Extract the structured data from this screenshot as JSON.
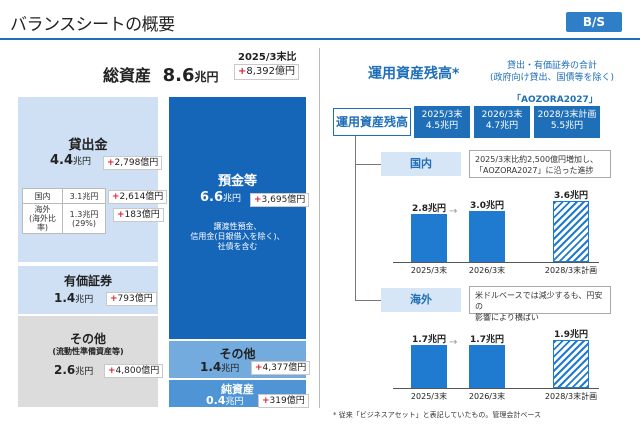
{
  "header": {
    "title": "バランスシートの概要",
    "badge": "B/S"
  },
  "left": {
    "total_assets": {
      "label": "総資産",
      "value": "8.6",
      "unit": "兆円"
    },
    "comparison": {
      "label": "2025/3末比",
      "delta": "8,392億円"
    },
    "loans": {
      "label": "貸出金",
      "value": "4.4",
      "unit": "兆円",
      "delta": "2,798億円",
      "breakdown": [
        {
          "label": "国内",
          "value": "3.1兆円",
          "delta": "2,614億円"
        },
        {
          "label": "海外\n(海外比率)",
          "value": "1.3兆円\n(29%)",
          "delta": "183億円"
        }
      ]
    },
    "securities": {
      "label": "有価証券",
      "value": "1.4",
      "unit": "兆円",
      "delta": "793億円"
    },
    "other_assets": {
      "label": "その他",
      "sublabel": "(流動性準備資産等)",
      "value": "2.6",
      "unit": "兆円",
      "delta": "4,800億円"
    },
    "deposits": {
      "label": "預金等",
      "value": "6.6",
      "unit": "兆円",
      "delta": "3,695億円",
      "note": "譲渡性預金、\n信用金(日銀借入を除く)、\n社債を含む"
    },
    "other_liab": {
      "label": "その他",
      "value": "1.4",
      "unit": "兆円",
      "delta": "4,377億円"
    },
    "net_assets": {
      "label": "純資産",
      "value": "0.4",
      "unit": "兆円",
      "delta": "319億円"
    },
    "plus": "+"
  },
  "right": {
    "title": "運用資産残高",
    "title_mark": "*",
    "subtitle": "貸出・有価証券の合計\n(政府向け貸出、国債等を除く)",
    "plan_label": "「AOZORA2027」",
    "flow_box": "運用資産残高",
    "steps": [
      {
        "label": "2025/3末",
        "value": "4.5兆円"
      },
      {
        "label": "2026/3末",
        "value": "4.7兆円"
      },
      {
        "label": "2028/3末計画",
        "value": "5.5兆円"
      }
    ],
    "domestic": {
      "label": "国内",
      "note": "2025/3末比約2,500億円増加し、\n「AOZORA2027」に沿った進捗",
      "chart_data": {
        "type": "bar",
        "categories": [
          "2025/3末",
          "2026/3末",
          "2028/3末計画"
        ],
        "values": [
          2.8,
          3.0,
          3.6
        ],
        "labels": [
          "2.8兆円",
          "3.0兆円",
          "3.6兆円"
        ],
        "ylim": [
          0,
          4
        ]
      }
    },
    "overseas": {
      "label": "海外",
      "note": "米ドルベースでは減少するも、円安の\n影響により横ばい",
      "chart_data": {
        "type": "bar",
        "categories": [
          "2025/3末",
          "2026/3末",
          "2028/3末計画"
        ],
        "values": [
          1.7,
          1.7,
          1.9
        ],
        "labels": [
          "1.7兆円",
          "1.7兆円",
          "1.9兆円"
        ],
        "ylim": [
          0,
          2.2
        ]
      }
    },
    "footnote": "* 従来「ビジネスアセット」と表記していたもの。管理会計ベース"
  }
}
